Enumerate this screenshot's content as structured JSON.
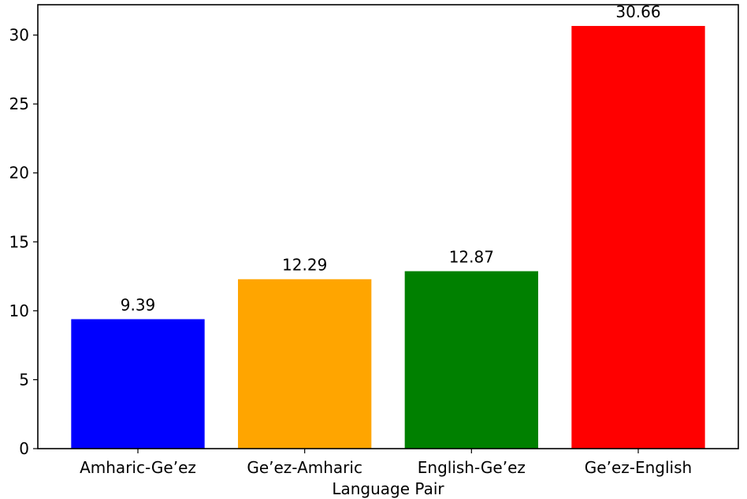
{
  "chart_data": {
    "type": "bar",
    "title": "",
    "xlabel": "Language Pair",
    "ylabel": "",
    "categories": [
      "Amharic-Ge’ez",
      "Ge’ez-Amharic",
      "English-Ge’ez",
      "Ge’ez-English"
    ],
    "values": [
      9.39,
      12.29,
      12.87,
      30.66
    ],
    "data_labels": [
      "9.39",
      "12.29",
      "12.87",
      "30.66"
    ],
    "colors": [
      "#0000ff",
      "#ffa500",
      "#008000",
      "#ff0000"
    ],
    "ylim": [
      0,
      32.2
    ],
    "yticks": [
      0,
      5,
      10,
      15,
      20,
      25,
      30
    ],
    "grid": false,
    "legend": "none"
  }
}
